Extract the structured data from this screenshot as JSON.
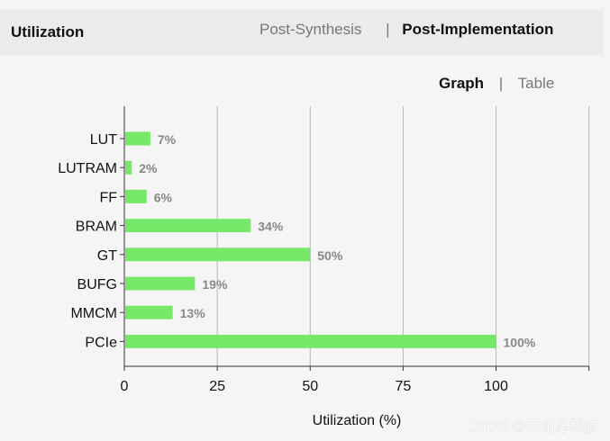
{
  "header": {
    "title": "Utilization",
    "tabs": [
      {
        "label": "Post-Synthesis",
        "active": false
      },
      {
        "label": "Post-Implementation",
        "active": true
      }
    ],
    "separator": "|"
  },
  "view_toggle": {
    "graph_label": "Graph",
    "table_label": "Table",
    "separator": "|",
    "active": "Graph"
  },
  "chart_data": {
    "type": "bar",
    "orientation": "horizontal",
    "categories": [
      "LUT",
      "LUTRAM",
      "FF",
      "BRAM",
      "GT",
      "BUFG",
      "MMCM",
      "PCIe"
    ],
    "values": [
      7,
      2,
      6,
      34,
      50,
      19,
      13,
      100
    ],
    "value_labels": [
      "7%",
      "2%",
      "6%",
      "34%",
      "50%",
      "19%",
      "13%",
      "100%"
    ],
    "xlabel": "Utilization (%)",
    "xlim": [
      0,
      125
    ],
    "xticks": [
      0,
      25,
      50,
      75,
      100
    ],
    "grid": true,
    "bar_color": "#77e86a",
    "label_color": "#888888"
  },
  "watermark": "CSDN @三角芯科技"
}
